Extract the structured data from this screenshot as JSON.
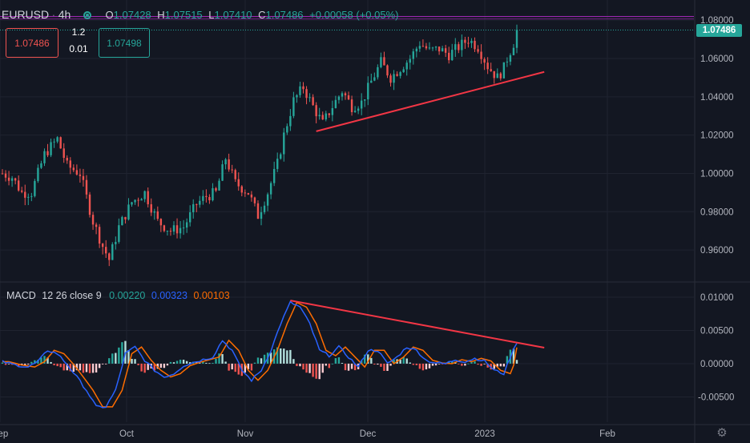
{
  "header": {
    "symbol": "EURUSD",
    "interval": "4h",
    "ohlc": {
      "o_label": "O",
      "o": "1.07428",
      "h_label": "H",
      "h": "1.07515",
      "l_label": "L",
      "l": "1.07410",
      "c_label": "C",
      "c": "1.07486",
      "change": "+0.00058 (+0.05%)"
    },
    "sell_price": "1.07486",
    "spread_top": "1.2",
    "spread_bottom": "0.01",
    "buy_price": "1.07498"
  },
  "macd_legend": {
    "name": "MACD",
    "params": "12 26 close 9",
    "hist": "0.00220",
    "macd": "0.00323",
    "signal": "0.00103"
  },
  "colors": {
    "up": "#26a69a",
    "down": "#ef5350",
    "macd_line": "#2962ff",
    "signal_line": "#ff6d00",
    "trendline": "#f23645",
    "hline": "#9c27b0",
    "price_badge": "#26a69a"
  },
  "chart_data": [
    {
      "type": "candlestick",
      "price_axis_ticks": [
        "1.08000",
        "1.06000",
        "1.04000",
        "1.02000",
        "1.00000",
        "0.98000",
        "0.96000"
      ],
      "tick_values": [
        1.08,
        1.06,
        1.04,
        1.02,
        1.0,
        0.98,
        0.96
      ],
      "current_price": "1.07486",
      "price_range": [
        0.945,
        1.083
      ],
      "time_labels": [
        "Sep",
        "Oct",
        "Nov",
        "Dec",
        "2023",
        "Feb"
      ],
      "anchors": [
        [
          0,
          1.0
        ],
        [
          3,
          0.998
        ],
        [
          6,
          0.99
        ],
        [
          9,
          0.99
        ],
        [
          13,
          1.01
        ],
        [
          17,
          1.018
        ],
        [
          20,
          1.004
        ],
        [
          24,
          1.0
        ],
        [
          28,
          0.975
        ],
        [
          31,
          0.962
        ],
        [
          33,
          0.955
        ],
        [
          36,
          0.972
        ],
        [
          40,
          0.985
        ],
        [
          44,
          0.99
        ],
        [
          48,
          0.975
        ],
        [
          52,
          0.97
        ],
        [
          56,
          0.972
        ],
        [
          60,
          0.984
        ],
        [
          63,
          0.988
        ],
        [
          66,
          0.99
        ],
        [
          69,
          1.008
        ],
        [
          72,
          0.995
        ],
        [
          76,
          0.99
        ],
        [
          79,
          0.978
        ],
        [
          82,
          0.99
        ],
        [
          85,
          1.005
        ],
        [
          87,
          1.02
        ],
        [
          90,
          1.038
        ],
        [
          93,
          1.045
        ],
        [
          96,
          1.035
        ],
        [
          99,
          1.026
        ],
        [
          102,
          1.035
        ],
        [
          105,
          1.043
        ],
        [
          108,
          1.035
        ],
        [
          111,
          1.037
        ],
        [
          114,
          1.048
        ],
        [
          117,
          1.058
        ],
        [
          120,
          1.05
        ],
        [
          123,
          1.055
        ],
        [
          126,
          1.06
        ],
        [
          129,
          1.068
        ],
        [
          132,
          1.064
        ],
        [
          135,
          1.065
        ],
        [
          138,
          1.062
        ],
        [
          141,
          1.066
        ],
        [
          144,
          1.07
        ],
        [
          147,
          1.066
        ],
        [
          150,
          1.056
        ],
        [
          153,
          1.05
        ],
        [
          155,
          1.055
        ],
        [
          156,
          1.06
        ],
        [
          158,
          1.068
        ],
        [
          159,
          1.0749
        ]
      ],
      "trendline": [
        [
          97,
          1.022
        ],
        [
          165,
          1.053
        ]
      ],
      "hline": 1.0815
    },
    {
      "type": "macd",
      "axis_ticks": [
        "0.01000",
        "0.00500",
        "0.00000",
        "-0.00500"
      ],
      "tick_values": [
        0.01,
        0.005,
        0.0,
        -0.005
      ],
      "value_range": [
        -0.0088,
        0.0118
      ],
      "macd_anchors": [
        [
          0,
          0.0003
        ],
        [
          4,
          -0.0002
        ],
        [
          8,
          -0.0005
        ],
        [
          11,
          0.0003
        ],
        [
          14,
          0.002
        ],
        [
          17,
          0.0015
        ],
        [
          20,
          -0.0001
        ],
        [
          23,
          -0.002
        ],
        [
          26,
          -0.004
        ],
        [
          29,
          -0.0065
        ],
        [
          32,
          -0.0065
        ],
        [
          35,
          -0.004
        ],
        [
          38,
          0.0015
        ],
        [
          41,
          0.0025
        ],
        [
          44,
          0.0005
        ],
        [
          47,
          -0.001
        ],
        [
          50,
          -0.002
        ],
        [
          53,
          -0.0015
        ],
        [
          56,
          -0.0003
        ],
        [
          59,
          0.0002
        ],
        [
          62,
          0.0006
        ],
        [
          65,
          0.001
        ],
        [
          68,
          0.0035
        ],
        [
          71,
          0.002
        ],
        [
          74,
          -0.001
        ],
        [
          77,
          -0.0025
        ],
        [
          80,
          -0.001
        ],
        [
          83,
          0.002
        ],
        [
          86,
          0.006
        ],
        [
          89,
          0.0092
        ],
        [
          92,
          0.0085
        ],
        [
          95,
          0.006
        ],
        [
          98,
          0.002
        ],
        [
          101,
          0.0012
        ],
        [
          104,
          0.0025
        ],
        [
          107,
          0.001
        ],
        [
          110,
          -0.0005
        ],
        [
          113,
          0.002
        ],
        [
          116,
          0.002
        ],
        [
          119,
          0.0
        ],
        [
          122,
          0.001
        ],
        [
          125,
          0.0025
        ],
        [
          128,
          0.002
        ],
        [
          131,
          0.0005
        ],
        [
          134,
          0.0001
        ],
        [
          137,
          0.0
        ],
        [
          140,
          0.0006
        ],
        [
          143,
          0.0003
        ],
        [
          146,
          0.0008
        ],
        [
          149,
          0.0004
        ],
        [
          152,
          -0.001
        ],
        [
          155,
          -0.0015
        ],
        [
          157,
          0.001
        ],
        [
          159,
          0.00323
        ]
      ],
      "signal_offset": 2,
      "trendline": [
        [
          89,
          0.0095
        ],
        [
          165,
          0.0024
        ]
      ]
    }
  ]
}
